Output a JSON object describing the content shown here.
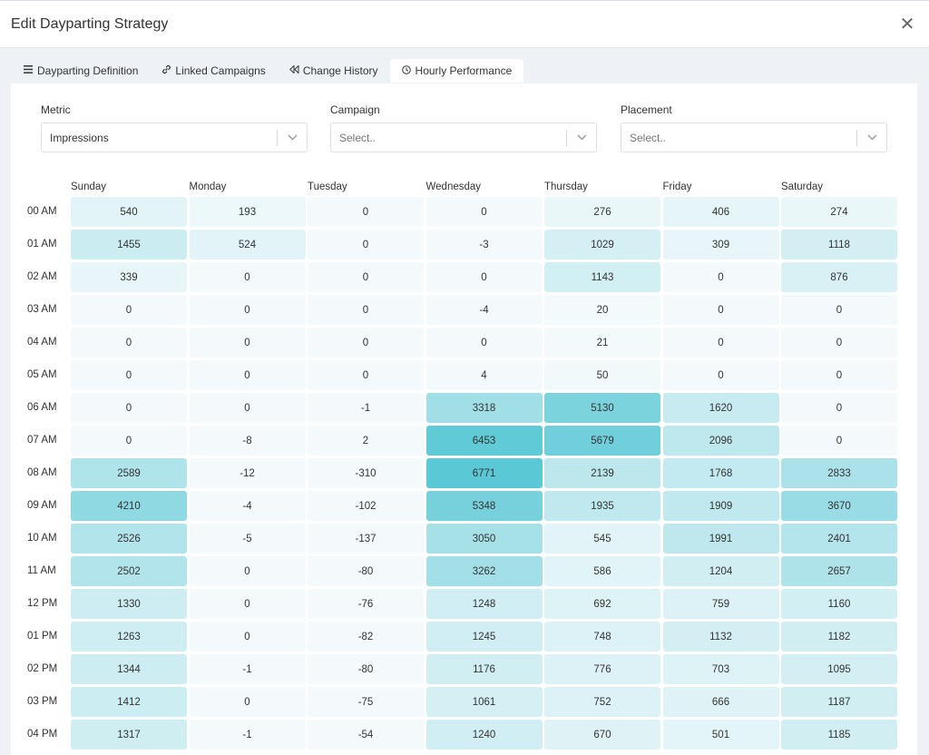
{
  "header": {
    "title": "Edit Dayparting Strategy",
    "close_symbol": "✕"
  },
  "tabs": [
    {
      "label": "Dayparting Definition",
      "icon": "menu-icon",
      "active": false
    },
    {
      "label": "Linked Campaigns",
      "icon": "link-icon",
      "active": false
    },
    {
      "label": "Change History",
      "icon": "rewind-icon",
      "active": false
    },
    {
      "label": "Hourly Performance",
      "icon": "clock-icon",
      "active": true
    }
  ],
  "filters": {
    "metric": {
      "label": "Metric",
      "value": "Impressions"
    },
    "campaign": {
      "label": "Campaign",
      "placeholder": "Select.."
    },
    "placement": {
      "label": "Placement",
      "placeholder": "Select.."
    }
  },
  "heatmap": {
    "days": [
      "Sunday",
      "Monday",
      "Tuesday",
      "Wednesday",
      "Thursday",
      "Friday",
      "Saturday"
    ],
    "hours": [
      "00 AM",
      "01 AM",
      "02 AM",
      "03 AM",
      "04 AM",
      "05 AM",
      "06 AM",
      "07 AM",
      "08 AM",
      "09 AM",
      "10 AM",
      "11 AM",
      "12 PM",
      "01 PM",
      "02 PM",
      "03 PM",
      "04 PM"
    ],
    "values": [
      [
        540,
        193,
        0,
        0,
        276,
        406,
        274
      ],
      [
        1455,
        524,
        0,
        -3,
        1029,
        309,
        1118
      ],
      [
        339,
        0,
        0,
        0,
        1143,
        0,
        876
      ],
      [
        0,
        0,
        0,
        -4,
        20,
        0,
        0
      ],
      [
        0,
        0,
        0,
        0,
        21,
        0,
        0
      ],
      [
        0,
        0,
        0,
        4,
        50,
        0,
        0
      ],
      [
        0,
        0,
        -1,
        3318,
        5130,
        1620,
        0
      ],
      [
        0,
        -8,
        2,
        6453,
        5679,
        2096,
        0
      ],
      [
        2589,
        -12,
        -310,
        6771,
        2139,
        1768,
        2833
      ],
      [
        4210,
        -4,
        -102,
        5348,
        1935,
        1909,
        3670
      ],
      [
        2526,
        -5,
        -137,
        3050,
        545,
        1991,
        2401
      ],
      [
        2502,
        0,
        -80,
        3262,
        586,
        1204,
        2657
      ],
      [
        1330,
        0,
        -76,
        1248,
        692,
        759,
        1160
      ],
      [
        1263,
        0,
        -82,
        1245,
        748,
        1132,
        1182
      ],
      [
        1344,
        -1,
        -80,
        1176,
        776,
        703,
        1095
      ],
      [
        1412,
        0,
        -75,
        1061,
        752,
        666,
        1187
      ],
      [
        1317,
        -1,
        -54,
        1240,
        670,
        501,
        1185
      ]
    ],
    "color_low": "#f4fafc",
    "color_high": "#5bc8d5"
  }
}
